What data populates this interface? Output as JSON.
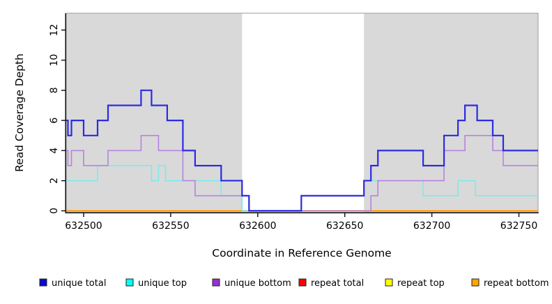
{
  "chart_data": {
    "type": "line",
    "subtype": "step",
    "title": "",
    "xlabel": "Coordinate in Reference Genome",
    "ylabel": "Read Coverage Depth",
    "xlim": [
      632490,
      632761
    ],
    "ylim": [
      0,
      13.1
    ],
    "xticks": [
      632500,
      632550,
      632600,
      632650,
      632700,
      632750
    ],
    "yticks": [
      0,
      2,
      4,
      6,
      8,
      10,
      12
    ],
    "grid": false,
    "legend_position": "bottom",
    "background_color": "#ffffff",
    "shade_color": "#d9d9d9",
    "axis_color": "#1a1a1a",
    "box_color": "#9a9a9a",
    "shaded_regions": [
      {
        "name": "left-shaded-region",
        "from": 632490,
        "to": 632591
      },
      {
        "name": "right-shaded-region",
        "from": 632661,
        "to": 632761
      }
    ],
    "series": [
      {
        "id": "unique-total",
        "name": "unique total",
        "line_color": "#2b2be0",
        "line_width": 2.2,
        "legend_fill": "#0a0ad0",
        "steps": [
          [
            632490,
            6
          ],
          [
            632491,
            5
          ],
          [
            632493,
            6
          ],
          [
            632500,
            5
          ],
          [
            632508,
            6
          ],
          [
            632514,
            7
          ],
          [
            632533,
            8
          ],
          [
            632539,
            7
          ],
          [
            632548,
            6
          ],
          [
            632557,
            4
          ],
          [
            632564,
            3
          ],
          [
            632579,
            2
          ],
          [
            632591,
            1
          ],
          [
            632595,
            0
          ],
          [
            632625,
            1
          ],
          [
            632661,
            2
          ],
          [
            632665,
            3
          ],
          [
            632669,
            4
          ],
          [
            632695,
            3
          ],
          [
            632707,
            5
          ],
          [
            632715,
            6
          ],
          [
            632719,
            7
          ],
          [
            632726,
            6
          ],
          [
            632735,
            5
          ],
          [
            632741,
            4
          ]
        ]
      },
      {
        "id": "unique-top",
        "name": "unique top",
        "line_color": "#7fe9e9",
        "line_width": 1.6,
        "legend_fill": "#00ffff",
        "steps": [
          [
            632490,
            2
          ],
          [
            632508,
            3
          ],
          [
            632539,
            2
          ],
          [
            632543,
            3
          ],
          [
            632547,
            2
          ],
          [
            632579,
            1
          ],
          [
            632591,
            0
          ],
          [
            632625,
            1
          ],
          [
            632661,
            2
          ],
          [
            632695,
            1
          ],
          [
            632715,
            2
          ],
          [
            632725,
            1
          ]
        ]
      },
      {
        "id": "unique-bottom",
        "name": "unique bottom",
        "line_color": "#b583e0",
        "line_width": 1.6,
        "legend_fill": "#9a30d0",
        "steps": [
          [
            632490,
            4
          ],
          [
            632491,
            3
          ],
          [
            632493,
            4
          ],
          [
            632500,
            3
          ],
          [
            632514,
            4
          ],
          [
            632533,
            5
          ],
          [
            632543,
            4
          ],
          [
            632557,
            2
          ],
          [
            632564,
            1
          ],
          [
            632595,
            0
          ],
          [
            632665,
            1
          ],
          [
            632669,
            2
          ],
          [
            632707,
            4
          ],
          [
            632719,
            5
          ],
          [
            632735,
            4
          ],
          [
            632741,
            3
          ]
        ]
      },
      {
        "id": "repeat-total",
        "name": "repeat total",
        "line_color": "#e03030",
        "line_width": 1.4,
        "legend_fill": "#ff0000",
        "steps": [
          [
            632490,
            0
          ]
        ]
      },
      {
        "id": "repeat-top",
        "name": "repeat top",
        "line_color": "#ffff00",
        "line_width": 1.4,
        "legend_fill": "#ffff00",
        "steps": [
          [
            632490,
            0
          ]
        ]
      },
      {
        "id": "repeat-bottom",
        "name": "repeat bottom",
        "line_color": "#ff9e1e",
        "line_width": 1.8,
        "legend_fill": "#ffa500",
        "steps": [
          [
            632490,
            0
          ]
        ]
      }
    ]
  }
}
